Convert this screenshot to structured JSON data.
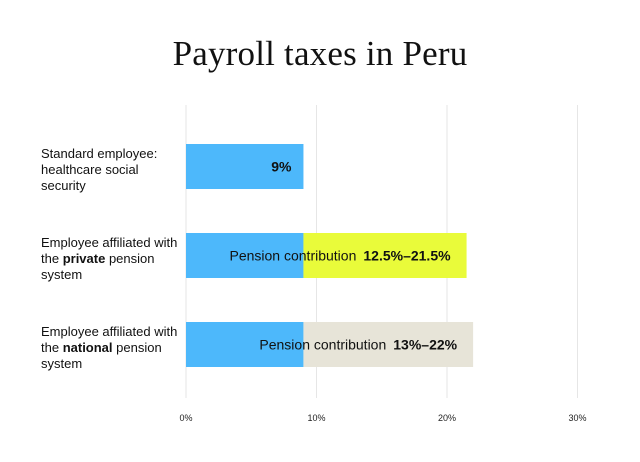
{
  "chart_data": {
    "type": "bar",
    "stacked": true,
    "orientation": "horizontal",
    "title": "Payroll taxes in Peru",
    "x_ticks": [
      "0%",
      "10%",
      "20%",
      "30%"
    ],
    "xlim": [
      0,
      32
    ],
    "grid": true,
    "categories": [
      {
        "pre": "Standard employee: healthcare social security",
        "bold": "",
        "post": ""
      },
      {
        "pre": "Employee affiliated with the ",
        "bold": "private",
        "post": " pension system"
      },
      {
        "pre": "Employee affiliated with the ",
        "bold": "national",
        "post": " pension system"
      }
    ],
    "series": [
      {
        "name": "",
        "color": "#4db8fb",
        "values": [
          9,
          9,
          9
        ],
        "labels": [
          "9%",
          "",
          ""
        ]
      },
      {
        "name": "Pension contribution",
        "color_by_category": [
          "",
          "#e9fb3a",
          "#e7e4d8"
        ],
        "values": [
          0,
          21.5,
          22
        ],
        "ranges": [
          "",
          "12.5%–21.5%",
          "13%–22%"
        ],
        "prefix": [
          "",
          "Pension contribution",
          "Pension contribution"
        ]
      }
    ]
  }
}
